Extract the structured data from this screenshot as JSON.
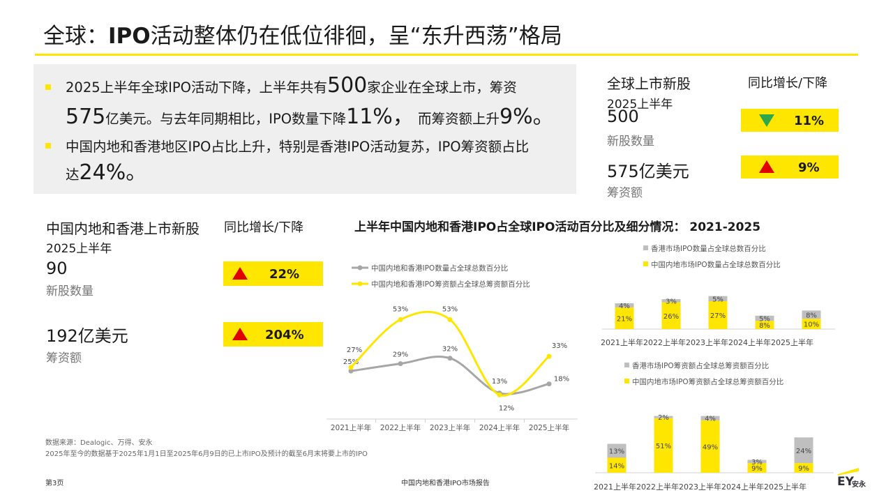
{
  "title": {
    "part1": "全球：",
    "part2": "IPO",
    "part3": "活动整体仍在低位徘徊，呈“东升西荡”格局"
  },
  "summary": {
    "b1_l1_a": "2025上半年全球IPO活动下降，上半年共有",
    "b1_l1_big": "500",
    "b1_l1_b": "家企业在全球上市，筹资",
    "b1_l2_big1": "575",
    "b1_l2_a": "亿美元。与去年同期相比，IPO数量下降",
    "b1_l2_big2": "11%，",
    "b1_l2_b": " 而筹资额上升",
    "b1_l2_big3": "9%。",
    "b2_l1": "中国内地和香港地区IPO占比上升，特别是香港IPO活动复苏，IPO筹资额占比",
    "b2_l2_a": "达",
    "b2_l2_big": "24%。"
  },
  "global": {
    "header": "全球上市新股",
    "yoy_header": "同比增长/下降",
    "period": "2025上半年",
    "count": "500",
    "count_label": "新股数量",
    "proceeds": "575亿美元",
    "proceeds_label": "筹资额",
    "count_change": "11%",
    "proceeds_change": "9%",
    "down_color": "#2ea84a",
    "up_color": "#e00000"
  },
  "china": {
    "header": "中国内地和香港上市新股",
    "yoy_header": "同比增长/下降",
    "period": "2025上半年",
    "count": "90",
    "count_label": "新股数量",
    "proceeds": "192亿美元",
    "proceeds_label": "筹资额",
    "count_change": "22%",
    "proceeds_change": "204%"
  },
  "chart_title": "上半年中国内地和香港IPO占全球IPO活动百分比及细分情况： 2021-2025",
  "footer": {
    "source": "数据来源：Dealogic、万得、安永",
    "note": "2025年至今的数据基于2025年1月1日至2025年6月9日的已上市IPO及预计的截至6月末将要上市的IPO",
    "page": "第3页",
    "report": "中国内地和香港IPO市场报告",
    "logo": "EY",
    "logo_cn": "安永"
  },
  "colors": {
    "yellow": "#ffe600",
    "gray": "#a6a6a6",
    "panel": "#efefef"
  },
  "chart_data": [
    {
      "type": "line",
      "categories": [
        "2021上半年",
        "2022上半年",
        "2023上半年",
        "2024上半年",
        "2025上半年"
      ],
      "series": [
        {
          "name": "中国内地和香港IPO数量占全球总数百分比",
          "values": [
            25,
            29,
            32,
            13,
            18
          ],
          "labels": [
            "25%",
            "29%",
            "32%",
            "13%",
            "18%"
          ],
          "color": "#a6a6a6"
        },
        {
          "name": "中国内地和香港IPO筹资额占全球总筹资额百分比",
          "values": [
            27,
            53,
            53,
            12,
            33
          ],
          "labels": [
            "27%",
            "53%",
            "53%",
            "12%",
            "33%"
          ],
          "color": "#ffe600"
        }
      ],
      "ylim": [
        0,
        60
      ]
    },
    {
      "type": "bar",
      "stacked": true,
      "categories": [
        "2021上半年",
        "2022上半年",
        "2023上半年",
        "2024上半年",
        "2025上半年"
      ],
      "category_text": "2021上半年2022上半年2023上半年2024上半年2025上半年",
      "series": [
        {
          "name": "中国内地市场IPO数量占全球总数百分比",
          "values": [
            21,
            26,
            27,
            8,
            10
          ],
          "labels": [
            "21%",
            "26%",
            "27%",
            "8%",
            "10%"
          ],
          "color": "#ffe600"
        },
        {
          "name": "香港市场IPO数量占全球总数百分比",
          "values": [
            4,
            3,
            5,
            5,
            8
          ],
          "labels": [
            "4%",
            "3%",
            "5%",
            "5%",
            "8%"
          ],
          "color": "#bfbfbf"
        }
      ]
    },
    {
      "type": "bar",
      "stacked": true,
      "categories": [
        "2021上半年",
        "2022上半年",
        "2023上半年",
        "2024上半年",
        "2025上半年"
      ],
      "category_text": "2021上半年2022上半年2023上半年2024上半年2025上半年",
      "series": [
        {
          "name": "中国内地市场IPO筹资额占全球总筹资额百分比",
          "values": [
            14,
            51,
            49,
            9,
            9
          ],
          "labels": [
            "14%",
            "51%",
            "49%",
            "9%",
            "9%"
          ],
          "color": "#ffe600"
        },
        {
          "name": "香港市场IPO筹资额占全球总筹资额百分比",
          "values": [
            13,
            2,
            4,
            3,
            24
          ],
          "labels": [
            "13%",
            "2%",
            "4%",
            "3%",
            "24%"
          ],
          "color": "#bfbfbf"
        }
      ]
    }
  ]
}
